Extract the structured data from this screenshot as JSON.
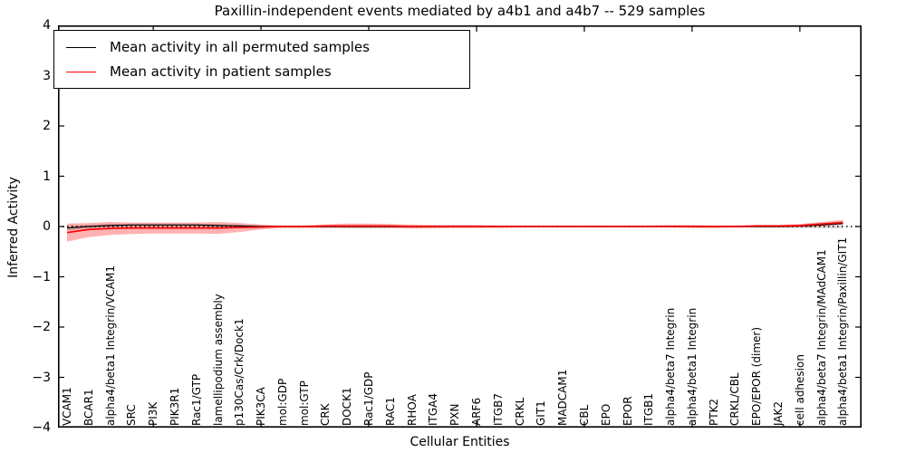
{
  "title": "Paxillin-independent events mediated by a4b1 and a4b7 -- 529 samples",
  "legend": {
    "entries": [
      {
        "label": "Mean activity in all permuted samples",
        "color": "#000000"
      },
      {
        "label": "Mean activity in patient samples",
        "color": "#ff0000"
      }
    ]
  },
  "chart_data": {
    "type": "line",
    "title": "Paxillin-independent events mediated by a4b1 and a4b7 -- 529 samples",
    "xlabel": "Cellular Entities",
    "ylabel": "Inferred Activity",
    "ylim": [
      -4,
      4
    ],
    "ytick_values": [
      4,
      3,
      2,
      1,
      0,
      -1,
      -2,
      -3,
      -4
    ],
    "ytick_labels": [
      "4",
      "3",
      "2",
      "1",
      "0",
      "−1",
      "−2",
      "−3",
      "−4"
    ],
    "grid": false,
    "legend_position": "upper left",
    "xticks_major_indices": [
      4,
      9,
      14,
      19,
      24,
      29,
      34
    ],
    "zero_line": {
      "style": "dotted",
      "color": "#000000",
      "y": 0
    },
    "categories": [
      "VCAM1",
      "BCAR1",
      "alpha4/beta1 Integrin/VCAM1",
      "SRC",
      "PI3K",
      "PIK3R1",
      "Rac1/GTP",
      "lamellipodium assembly",
      "p130Cas/Crk/Dock1",
      "PIK3CA",
      "mol:GDP",
      "mol:GTP",
      "CRK",
      "DOCK1",
      "Rac1/GDP",
      "RAC1",
      "RHOA",
      "ITGA4",
      "PXN",
      "ARF6",
      "ITGB7",
      "CRKL",
      "GIT1",
      "MADCAM1",
      "CBL",
      "EPO",
      "EPOR",
      "ITGB1",
      "alpha4/beta7 Integrin",
      "alpha4/beta1 Integrin",
      "PTK2",
      "CRKL/CBL",
      "EPO/EPOR (dimer)",
      "JAK2",
      "cell adhesion",
      "alpha4/beta7 Integrin/MAdCAM1",
      "alpha4/beta1 Integrin/Paxillin/GIT1"
    ],
    "series": [
      {
        "name": "Mean activity in all permuted samples",
        "color": "#000000",
        "width": 1.2,
        "values": [
          -0.03,
          0.0,
          0.02,
          0.03,
          0.03,
          0.03,
          0.03,
          0.02,
          0.01,
          0.0,
          0.0,
          0.0,
          0.0,
          0.0,
          0.0,
          0.0,
          0.0,
          0.0,
          0.0,
          0.0,
          0.0,
          0.0,
          0.0,
          0.0,
          0.0,
          0.0,
          0.0,
          0.0,
          0.0,
          0.0,
          0.0,
          0.0,
          0.0,
          0.0,
          0.01,
          0.03,
          0.06
        ]
      },
      {
        "name": "Mean activity in patient samples",
        "color": "#ff0000",
        "width": 1.6,
        "values": [
          -0.12,
          -0.06,
          -0.04,
          -0.03,
          -0.03,
          -0.03,
          -0.03,
          -0.03,
          -0.02,
          -0.01,
          0.0,
          0.0,
          0.01,
          0.01,
          0.01,
          0.01,
          0.0,
          0.0,
          0.0,
          0.0,
          0.0,
          0.0,
          0.0,
          0.0,
          0.0,
          0.0,
          0.0,
          0.0,
          0.0,
          0.0,
          0.0,
          0.0,
          0.01,
          0.01,
          0.02,
          0.05,
          0.08
        ]
      }
    ],
    "bands": [
      {
        "name": "permuted-samples-band",
        "color": "rgba(0,0,0,0.13)",
        "upper": [
          0.02,
          0.04,
          0.06,
          0.06,
          0.06,
          0.06,
          0.06,
          0.05,
          0.04,
          0.02,
          0.01,
          0.01,
          0.02,
          0.02,
          0.02,
          0.02,
          0.01,
          0.01,
          0.01,
          0.01,
          0.01,
          0.01,
          0.01,
          0.01,
          0.01,
          0.01,
          0.01,
          0.01,
          0.01,
          0.01,
          0.01,
          0.01,
          0.01,
          0.01,
          0.03,
          0.05,
          0.08
        ],
        "lower": [
          -0.08,
          -0.05,
          -0.03,
          -0.02,
          -0.02,
          -0.02,
          -0.02,
          -0.02,
          -0.02,
          -0.02,
          -0.01,
          -0.01,
          -0.02,
          -0.03,
          -0.03,
          -0.03,
          -0.03,
          -0.02,
          -0.01,
          -0.01,
          -0.01,
          -0.01,
          -0.01,
          -0.01,
          -0.01,
          -0.01,
          -0.01,
          -0.01,
          -0.01,
          -0.01,
          -0.02,
          -0.02,
          -0.02,
          -0.02,
          -0.03,
          -0.04,
          -0.04
        ]
      },
      {
        "name": "patient-samples-band",
        "color": "rgba(255,0,0,0.30)",
        "upper": [
          0.06,
          0.07,
          0.09,
          0.08,
          0.08,
          0.08,
          0.08,
          0.09,
          0.07,
          0.04,
          0.02,
          0.02,
          0.04,
          0.06,
          0.06,
          0.05,
          0.04,
          0.03,
          0.03,
          0.03,
          0.02,
          0.02,
          0.02,
          0.02,
          0.02,
          0.02,
          0.02,
          0.02,
          0.03,
          0.03,
          0.02,
          0.02,
          0.03,
          0.03,
          0.05,
          0.09,
          0.13
        ],
        "lower": [
          -0.3,
          -0.21,
          -0.17,
          -0.15,
          -0.14,
          -0.14,
          -0.14,
          -0.15,
          -0.11,
          -0.06,
          -0.03,
          -0.03,
          -0.03,
          -0.03,
          -0.03,
          -0.03,
          -0.04,
          -0.04,
          -0.03,
          -0.03,
          -0.03,
          -0.02,
          -0.02,
          -0.02,
          -0.02,
          -0.02,
          -0.02,
          -0.02,
          -0.02,
          -0.03,
          -0.03,
          -0.02,
          -0.02,
          -0.02,
          -0.02,
          0.0,
          0.04
        ]
      }
    ]
  }
}
